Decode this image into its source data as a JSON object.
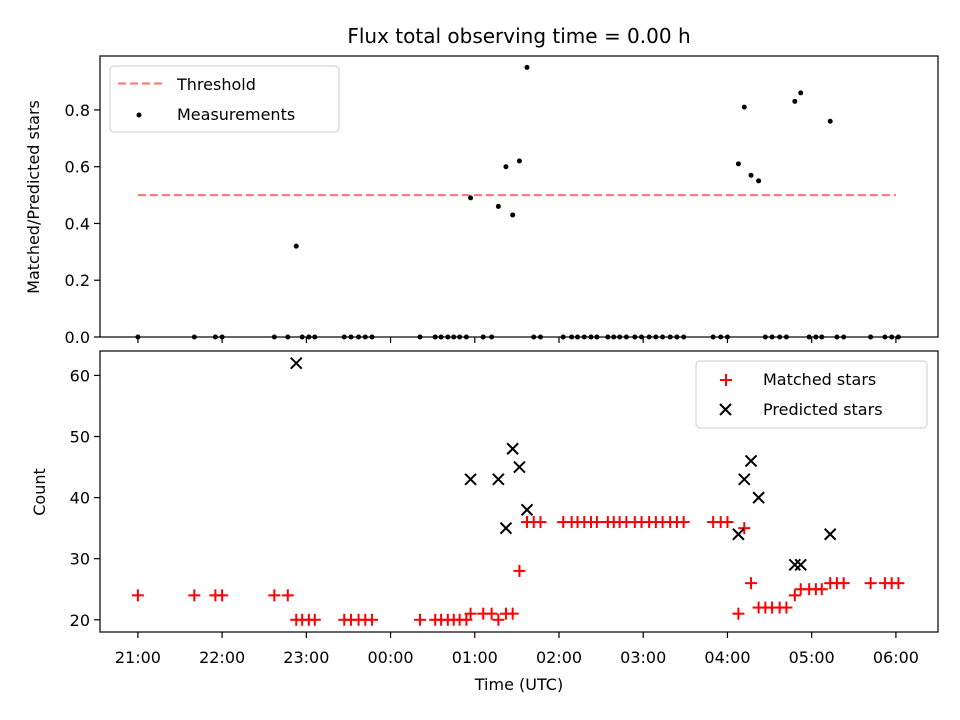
{
  "chart_data": [
    {
      "type": "scatter",
      "title": "Flux total observing time = 0.00 h",
      "xlabel": "",
      "ylabel": "Matched/Predicted stars",
      "xlim": [
        20.55,
        30.5
      ],
      "ylim": [
        0.0,
        0.99
      ],
      "yticks": [
        0.0,
        0.2,
        0.4,
        0.6,
        0.8
      ],
      "ytick_labels": [
        "0.0",
        "0.2",
        "0.4",
        "0.6",
        "0.8"
      ],
      "legend": {
        "position": "top-left",
        "entries": [
          "Threshold",
          "Measurements"
        ]
      },
      "threshold": {
        "name": "Threshold",
        "value": 0.5,
        "x_start": 21.0,
        "x_end": 30.0,
        "color": "#ff7070"
      },
      "series": [
        {
          "name": "Measurements",
          "color": "#000000",
          "points": [
            [
              21.0,
              0
            ],
            [
              21.67,
              0
            ],
            [
              21.92,
              0
            ],
            [
              22.0,
              0
            ],
            [
              22.62,
              0
            ],
            [
              22.78,
              0
            ],
            [
              22.88,
              0.32
            ],
            [
              22.95,
              0
            ],
            [
              23.03,
              0
            ],
            [
              23.1,
              0
            ],
            [
              23.45,
              0
            ],
            [
              23.53,
              0
            ],
            [
              23.62,
              0
            ],
            [
              23.7,
              0
            ],
            [
              23.78,
              0
            ],
            [
              24.35,
              0
            ],
            [
              24.53,
              0
            ],
            [
              24.6,
              0
            ],
            [
              24.68,
              0
            ],
            [
              24.75,
              0
            ],
            [
              24.82,
              0
            ],
            [
              24.9,
              0
            ],
            [
              24.95,
              0.49
            ],
            [
              25.1,
              0
            ],
            [
              25.2,
              0
            ],
            [
              25.28,
              0.46
            ],
            [
              25.37,
              0.6
            ],
            [
              25.45,
              0.43
            ],
            [
              25.53,
              0.62
            ],
            [
              25.62,
              0.95
            ],
            [
              25.7,
              0
            ],
            [
              25.78,
              0
            ],
            [
              26.05,
              0
            ],
            [
              26.15,
              0
            ],
            [
              26.22,
              0
            ],
            [
              26.3,
              0
            ],
            [
              26.38,
              0
            ],
            [
              26.45,
              0
            ],
            [
              26.58,
              0
            ],
            [
              26.65,
              0
            ],
            [
              26.72,
              0
            ],
            [
              26.8,
              0
            ],
            [
              26.9,
              0
            ],
            [
              26.98,
              0
            ],
            [
              27.07,
              0
            ],
            [
              27.15,
              0
            ],
            [
              27.23,
              0
            ],
            [
              27.32,
              0
            ],
            [
              27.4,
              0
            ],
            [
              27.48,
              0
            ],
            [
              27.83,
              0
            ],
            [
              27.92,
              0
            ],
            [
              28.0,
              0
            ],
            [
              28.13,
              0.61
            ],
            [
              28.2,
              0.81
            ],
            [
              28.28,
              0.57
            ],
            [
              28.37,
              0.55
            ],
            [
              28.45,
              0
            ],
            [
              28.53,
              0
            ],
            [
              28.62,
              0
            ],
            [
              28.7,
              0
            ],
            [
              28.8,
              0.83
            ],
            [
              28.87,
              0.86
            ],
            [
              28.97,
              0
            ],
            [
              29.05,
              0
            ],
            [
              29.12,
              0
            ],
            [
              29.22,
              0.76
            ],
            [
              29.3,
              0
            ],
            [
              29.38,
              0
            ],
            [
              29.7,
              0
            ],
            [
              29.87,
              0
            ],
            [
              29.95,
              0
            ],
            [
              30.03,
              0
            ]
          ]
        }
      ]
    },
    {
      "type": "scatter",
      "title": "",
      "xlabel": "Time (UTC)",
      "ylabel": "Count",
      "xlim": [
        20.55,
        30.5
      ],
      "ylim": [
        18.0,
        64.0
      ],
      "yticks": [
        20,
        30,
        40,
        50,
        60
      ],
      "ytick_labels": [
        "20",
        "30",
        "40",
        "50",
        "60"
      ],
      "xticks": [
        21,
        22,
        23,
        24,
        25,
        26,
        27,
        28,
        29,
        30
      ],
      "xtick_labels": [
        "21:00",
        "22:00",
        "23:00",
        "00:00",
        "01:00",
        "02:00",
        "03:00",
        "04:00",
        "05:00",
        "06:00"
      ],
      "legend": {
        "position": "top-right",
        "entries": [
          "Matched stars",
          "Predicted stars"
        ]
      },
      "series": [
        {
          "name": "Matched stars",
          "marker": "plus",
          "color": "#ff0000",
          "points": [
            [
              21.0,
              24
            ],
            [
              21.67,
              24
            ],
            [
              21.92,
              24
            ],
            [
              22.0,
              24
            ],
            [
              22.62,
              24
            ],
            [
              22.78,
              24
            ],
            [
              22.88,
              20
            ],
            [
              22.95,
              20
            ],
            [
              23.03,
              20
            ],
            [
              23.1,
              20
            ],
            [
              23.45,
              20
            ],
            [
              23.53,
              20
            ],
            [
              23.62,
              20
            ],
            [
              23.7,
              20
            ],
            [
              23.78,
              20
            ],
            [
              24.35,
              20
            ],
            [
              24.53,
              20
            ],
            [
              24.6,
              20
            ],
            [
              24.68,
              20
            ],
            [
              24.75,
              20
            ],
            [
              24.82,
              20
            ],
            [
              24.9,
              20
            ],
            [
              24.95,
              21
            ],
            [
              25.1,
              21
            ],
            [
              25.2,
              21
            ],
            [
              25.28,
              20
            ],
            [
              25.37,
              21
            ],
            [
              25.45,
              21
            ],
            [
              25.53,
              28
            ],
            [
              25.62,
              36
            ],
            [
              25.7,
              36
            ],
            [
              25.78,
              36
            ],
            [
              26.05,
              36
            ],
            [
              26.15,
              36
            ],
            [
              26.22,
              36
            ],
            [
              26.3,
              36
            ],
            [
              26.38,
              36
            ],
            [
              26.45,
              36
            ],
            [
              26.58,
              36
            ],
            [
              26.65,
              36
            ],
            [
              26.72,
              36
            ],
            [
              26.8,
              36
            ],
            [
              26.9,
              36
            ],
            [
              26.98,
              36
            ],
            [
              27.07,
              36
            ],
            [
              27.15,
              36
            ],
            [
              27.23,
              36
            ],
            [
              27.32,
              36
            ],
            [
              27.4,
              36
            ],
            [
              27.48,
              36
            ],
            [
              27.83,
              36
            ],
            [
              27.92,
              36
            ],
            [
              28.0,
              36
            ],
            [
              28.13,
              21
            ],
            [
              28.2,
              35
            ],
            [
              28.28,
              26
            ],
            [
              28.37,
              22
            ],
            [
              28.45,
              22
            ],
            [
              28.53,
              22
            ],
            [
              28.62,
              22
            ],
            [
              28.7,
              22
            ],
            [
              28.8,
              24
            ],
            [
              28.87,
              25
            ],
            [
              28.97,
              25
            ],
            [
              29.05,
              25
            ],
            [
              29.12,
              25
            ],
            [
              29.22,
              26
            ],
            [
              29.3,
              26
            ],
            [
              29.38,
              26
            ],
            [
              29.7,
              26
            ],
            [
              29.87,
              26
            ],
            [
              29.95,
              26
            ],
            [
              30.03,
              26
            ]
          ]
        },
        {
          "name": "Predicted stars",
          "marker": "x",
          "color": "#000000",
          "points": [
            [
              22.88,
              62
            ],
            [
              24.95,
              43
            ],
            [
              25.28,
              43
            ],
            [
              25.37,
              35
            ],
            [
              25.45,
              48
            ],
            [
              25.53,
              45
            ],
            [
              25.62,
              38
            ],
            [
              28.13,
              34
            ],
            [
              28.2,
              43
            ],
            [
              28.28,
              46
            ],
            [
              28.37,
              40
            ],
            [
              28.8,
              29
            ],
            [
              28.87,
              29
            ],
            [
              29.22,
              34
            ]
          ]
        }
      ]
    }
  ]
}
